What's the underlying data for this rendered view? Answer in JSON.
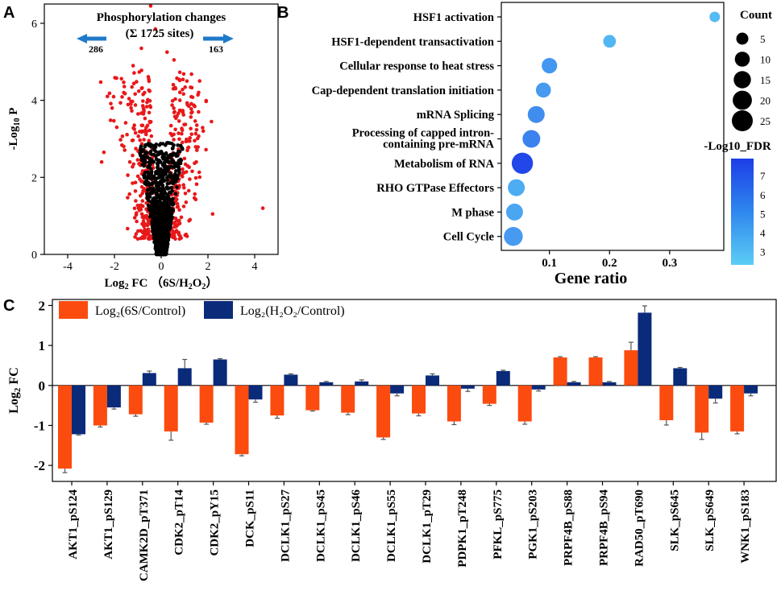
{
  "chart_data": [
    {
      "panel": "A",
      "type": "scatter",
      "title": "Phosphorylation changes",
      "subtitle": "(Σ 1725 sites)",
      "xlabel": "Log2 FC (6S/H2O2)",
      "ylabel": "-Log10 P",
      "xlim": [
        -5,
        5
      ],
      "ylim": [
        0,
        6.5
      ],
      "x_ticks": [
        -4,
        -2,
        0,
        2,
        4
      ],
      "y_ticks": [
        0,
        2,
        4,
        6
      ],
      "down_count": "286",
      "up_count": "163",
      "colors": {
        "significant": "#e8181a",
        "nonsignificant": "#000000",
        "arrow": "#1f7ac9"
      },
      "points_sig": [
        [
          -0.45,
          6.45
        ],
        [
          -0.25,
          5.85
        ],
        [
          -0.85,
          5.35
        ],
        [
          0.25,
          5.25
        ],
        [
          0.55,
          5.05
        ],
        [
          -1.2,
          4.9
        ],
        [
          1.1,
          4.5
        ],
        [
          -1.6,
          4.2
        ],
        [
          -2.3,
          4.1
        ],
        [
          -2.1,
          3.8
        ],
        [
          1.6,
          3.7
        ],
        [
          2.2,
          1.05
        ],
        [
          4.35,
          1.2
        ],
        [
          -2.55,
          2.4
        ],
        [
          -2.45,
          2.65
        ],
        [
          1.8,
          3.2
        ],
        [
          -1.9,
          3.3
        ],
        [
          1.5,
          2.4
        ],
        [
          -1.3,
          3.9
        ],
        [
          0.8,
          4.0
        ]
      ],
      "points_nonsig_note": "dense black cloud within |Log2 FC| < ~1 and -Log10 P < ~3"
    },
    {
      "panel": "B",
      "type": "scatter",
      "subtype": "dot-plot",
      "xlabel": "Gene ratio",
      "x_ticks": [
        0.1,
        0.2,
        0.3
      ],
      "xlim": [
        0.02,
        0.39
      ],
      "categories": [
        "HSF1 activation",
        "HSF1-dependent transactivation",
        "Cellular response to heat stress",
        "Cap-dependent translation initiation",
        "mRNA Splicing",
        "Processing of capped intron-containing pre-mRNA",
        "Metabolism of RNA",
        "RHO GTPase Effectors",
        "M phase",
        "Cell Cycle"
      ],
      "labels": [
        "HSF1 activation",
        "HSF1-dependent transactivation",
        "Cellular response to heat stress",
        "Cap-dependent translation initiation",
        "mRNA Splicing",
        "Processing of capped intron-",
        "containing pre-mRNA",
        "Metabolism of RNA",
        "RHO GTPase Effectors",
        "M phase",
        "Cell Cycle"
      ],
      "gene_ratio": [
        0.375,
        0.2,
        0.1,
        0.09,
        0.078,
        0.07,
        0.055,
        0.045,
        0.042,
        0.04
      ],
      "count": [
        3,
        6,
        11,
        10,
        14,
        16,
        26,
        14,
        14,
        19
      ],
      "neg_log10_fdr": [
        3.0,
        3.2,
        4.4,
        4.3,
        4.8,
        5.2,
        7.5,
        3.6,
        3.8,
        4.3
      ],
      "size_legend_title": "Count",
      "size_legend": [
        "5",
        "10",
        "15",
        "20",
        "25"
      ],
      "size_legend_values": [
        5,
        10,
        15,
        20,
        25
      ],
      "color_legend_title": "-Log10_FDR",
      "color_legend_ticks": [
        "3",
        "4",
        "5",
        "6",
        "7"
      ],
      "color_legend_values": [
        3,
        4,
        5,
        6,
        7
      ],
      "color_range": [
        2.3,
        7.9
      ],
      "colors": {
        "low": "#5ccdf5",
        "high": "#1d3de8"
      }
    },
    {
      "panel": "C",
      "type": "bar",
      "ylabel": "Log2 FC",
      "ylim": [
        -2.4,
        2.15
      ],
      "y_ticks": [
        "-2",
        "-1",
        "0",
        "1",
        "2"
      ],
      "y_tick_values": [
        -2,
        -1,
        0,
        1,
        2
      ],
      "categories": [
        "AKT1_pS124",
        "AKT1_pS129",
        "CAMK2D_pT371",
        "CDK2_pT14",
        "CDK2_pY15",
        "DCK_pS11",
        "DCLK1_pS27",
        "DCLK1_pS45",
        "DCLK1_pS46",
        "DCLK1_pS55",
        "DCLK1_pT29",
        "PDPK1_pT248",
        "PFKL_pS775",
        "PGK1_pS203",
        "PRPF4B_pS88",
        "PRPF4B_pS94",
        "RAD50_pT690",
        "SLK_pS645",
        "SLK_pS649",
        "WNK1_pS183"
      ],
      "series": [
        {
          "name": "Log₂(6S/Control)",
          "color": "#fb4b0f",
          "values": [
            -2.08,
            -1.0,
            -0.72,
            -1.15,
            -0.93,
            -1.72,
            -0.75,
            -0.62,
            -0.68,
            -1.3,
            -0.7,
            -0.9,
            -0.46,
            -0.9,
            0.7,
            0.7,
            0.88,
            -0.87,
            -1.18,
            -1.15
          ],
          "errors": [
            0.1,
            0.04,
            0.05,
            0.22,
            0.04,
            0.04,
            0.07,
            0.02,
            0.05,
            0.05,
            0.06,
            0.08,
            0.04,
            0.07,
            0.02,
            0.02,
            0.2,
            0.12,
            0.17,
            0.06
          ]
        },
        {
          "name": "Log₂(H₂O₂/Control)",
          "color": "#0a2a7a",
          "values": [
            -1.22,
            -0.55,
            0.31,
            0.43,
            0.65,
            -0.35,
            0.27,
            0.08,
            0.1,
            -0.2,
            0.25,
            -0.08,
            0.36,
            -0.1,
            0.08,
            0.08,
            1.82,
            0.43,
            -0.33,
            -0.2
          ],
          "errors": [
            0.02,
            0.04,
            0.05,
            0.22,
            0.02,
            0.07,
            0.02,
            0.02,
            0.04,
            0.06,
            0.04,
            0.07,
            0.02,
            0.04,
            0.02,
            0.02,
            0.17,
            0.02,
            0.11,
            0.06
          ]
        }
      ]
    }
  ]
}
